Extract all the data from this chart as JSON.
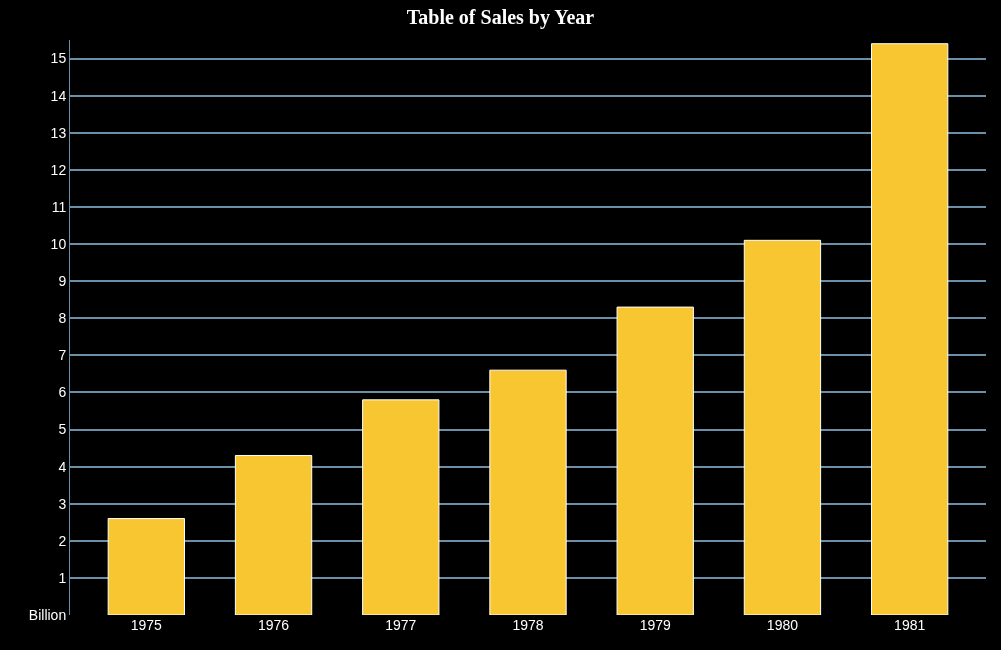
{
  "chart_data": {
    "type": "bar",
    "title": "Table of Sales by Year",
    "categories": [
      "1975",
      "1976",
      "1977",
      "1978",
      "1979",
      "1980",
      "1981"
    ],
    "values": [
      2.6,
      4.3,
      5.8,
      6.6,
      8.3,
      10.1,
      15.4
    ],
    "color": "#f8c630",
    "ylim": [
      0,
      15.5
    ],
    "yticks": [
      {
        "value": 0,
        "label": "Billion"
      },
      1,
      2,
      3,
      4,
      5,
      6,
      7,
      8,
      9,
      10,
      11,
      12,
      13,
      14,
      15
    ],
    "grid": "y"
  }
}
